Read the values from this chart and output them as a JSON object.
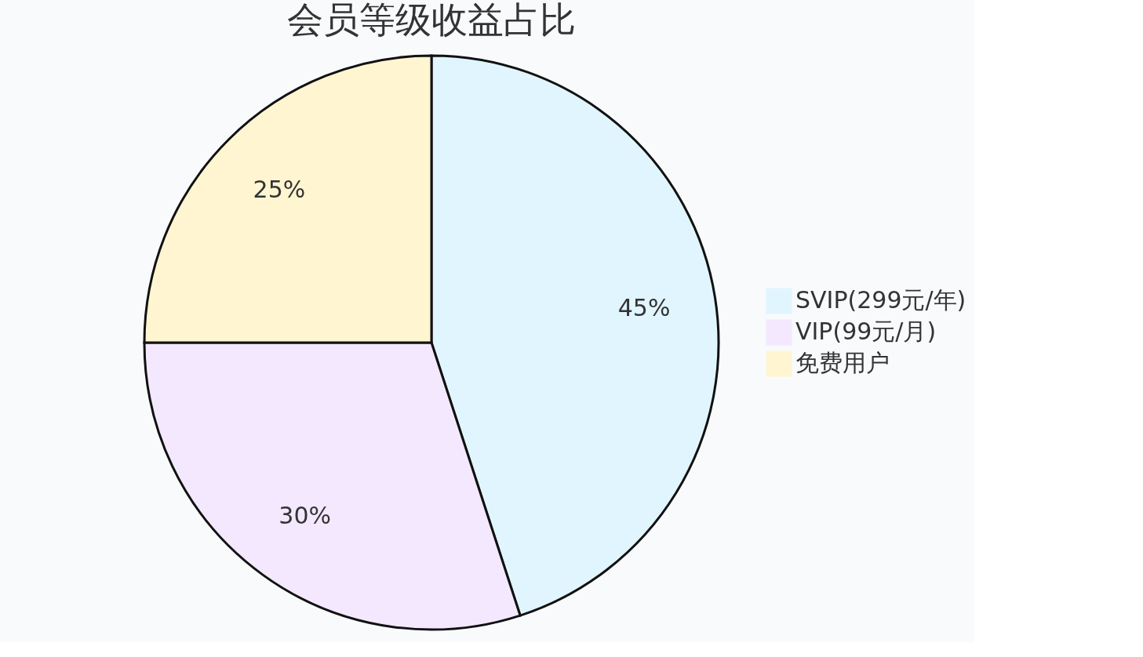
{
  "chart_data": {
    "type": "pie",
    "title": "会员等级收益占比",
    "categories": [
      "SVIP(299元/年)",
      "VIP(99元/月)",
      "免费用户"
    ],
    "values": [
      45,
      30,
      25
    ],
    "colors": [
      "#e1f5fe",
      "#f3e8fd",
      "#fff5d1"
    ],
    "value_labels": [
      "45%",
      "30%",
      "25%"
    ],
    "legend": "right"
  }
}
